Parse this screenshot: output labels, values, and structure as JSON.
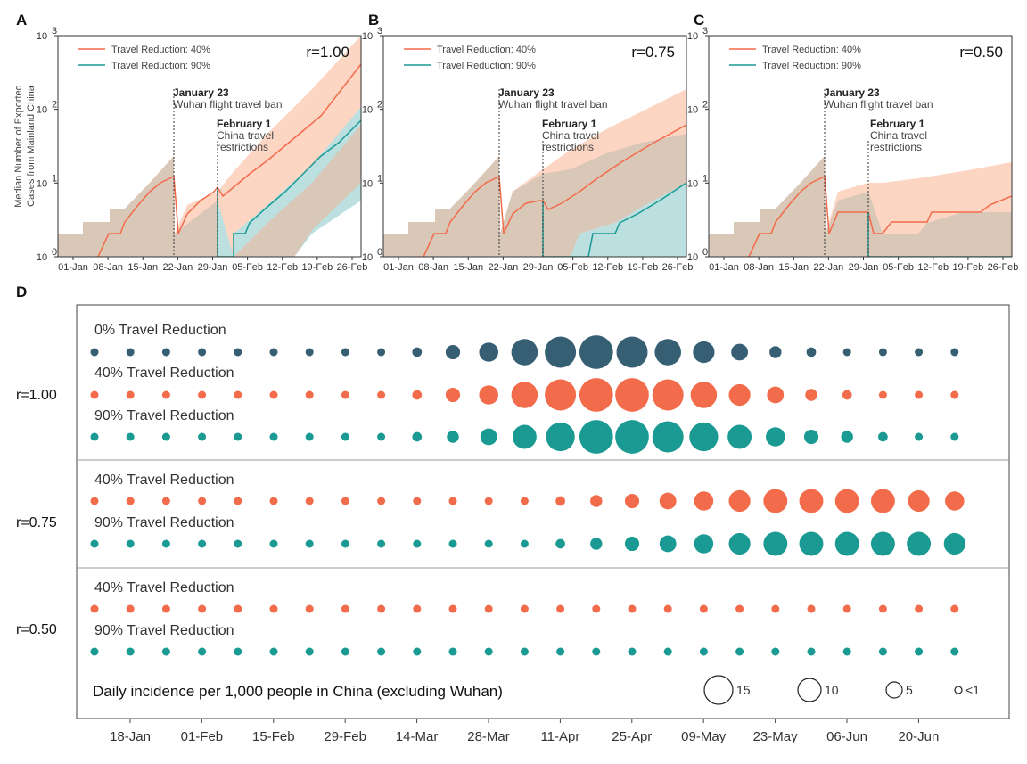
{
  "colors": {
    "travel_40": "#f26b4a",
    "travel_90": "#1a9a93",
    "travel_0": "#365f73",
    "band_40": "#fcd5c3",
    "band_90": "#bcdfe0",
    "band_overlap": "#d9c7b8"
  },
  "panels": [
    {
      "letter": "A",
      "r_label": "r=1.00"
    },
    {
      "letter": "B",
      "r_label": "r=0.75"
    },
    {
      "letter": "C",
      "r_label": "r=0.50"
    }
  ],
  "panel_d_letter": "D",
  "y_axis_label_line1": "Median Number of Exported",
  "y_axis_label_line2": "Cases from Mainland China",
  "y_ticks": [
    "10",
    "10",
    "10",
    "10"
  ],
  "y_tick_exponents": [
    "0",
    "1",
    "2",
    "3"
  ],
  "x_ticks_abc": [
    "01-Jan",
    "08-Jan",
    "15-Jan",
    "22-Jan",
    "29-Jan",
    "05-Feb",
    "12-Feb",
    "19-Feb",
    "26-Feb"
  ],
  "legend": {
    "s40": "Travel Reduction: 40%",
    "s90": "Travel Reduction: 90%"
  },
  "annotations": {
    "jan23_title": "January 23",
    "jan23_sub": "Wuhan flight travel ban",
    "feb1_title": "February 1",
    "feb1_sub1": "China travel",
    "feb1_sub2": "restrictions"
  },
  "panel_d": {
    "groups": [
      {
        "label": "r=1.00",
        "rows": [
          {
            "label": "0% Travel Reduction",
            "series": "travel_0",
            "sizes": [
              1,
              1,
              1,
              1,
              1,
              1,
              1,
              1,
              1,
              2,
              4,
              6,
              9,
              11,
              12,
              11,
              9,
              7,
              5,
              3,
              2,
              1,
              1,
              1,
              1
            ]
          },
          {
            "label": "40% Travel Reduction",
            "series": "travel_40",
            "sizes": [
              1,
              1,
              1,
              1,
              1,
              1,
              1,
              1,
              1,
              2,
              4,
              6,
              9,
              11,
              12,
              12,
              11,
              9,
              7,
              5,
              3,
              2,
              1,
              1,
              1
            ]
          },
          {
            "label": "90% Travel Reduction",
            "series": "travel_90",
            "sizes": [
              1,
              1,
              1,
              1,
              1,
              1,
              1,
              1,
              1,
              2,
              3,
              5,
              8,
              10,
              12,
              12,
              11,
              10,
              8,
              6,
              4,
              3,
              2,
              1,
              1
            ]
          }
        ]
      },
      {
        "label": "r=0.75",
        "rows": [
          {
            "label": "40% Travel Reduction",
            "series": "travel_40",
            "sizes": [
              1,
              1,
              1,
              1,
              1,
              1,
              1,
              1,
              1,
              1,
              1,
              1,
              1,
              2,
              3,
              4,
              5,
              6,
              7,
              8,
              8,
              8,
              8,
              7,
              6
            ]
          },
          {
            "label": "90% Travel Reduction",
            "series": "travel_90",
            "sizes": [
              1,
              1,
              1,
              1,
              1,
              1,
              1,
              1,
              1,
              1,
              1,
              1,
              1,
              2,
              3,
              4,
              5,
              6,
              7,
              8,
              8,
              8,
              8,
              8,
              7
            ]
          }
        ]
      },
      {
        "label": "r=0.50",
        "rows": [
          {
            "label": "40% Travel Reduction",
            "series": "travel_40",
            "sizes": [
              1,
              1,
              1,
              1,
              1,
              1,
              1,
              1,
              1,
              1,
              1,
              1,
              1,
              1,
              1,
              1,
              1,
              1,
              1,
              1,
              1,
              1,
              1,
              1,
              1
            ]
          },
          {
            "label": "90% Travel Reduction",
            "series": "travel_90",
            "sizes": [
              1,
              1,
              1,
              1,
              1,
              1,
              1,
              1,
              1,
              1,
              1,
              1,
              1,
              1,
              1,
              1,
              1,
              1,
              1,
              1,
              1,
              1,
              1,
              1,
              1
            ]
          }
        ]
      }
    ],
    "x_ticks": [
      "18-Jan",
      "01-Feb",
      "15-Feb",
      "29-Feb",
      "14-Mar",
      "28-Mar",
      "11-Apr",
      "25-Apr",
      "09-May",
      "23-May",
      "06-Jun",
      "20-Jun"
    ],
    "note": "Daily incidence per 1,000 people in China (excluding Wuhan)",
    "size_legend": [
      {
        "label": "15",
        "value": 15
      },
      {
        "label": "10",
        "value": 10
      },
      {
        "label": "5",
        "value": 5
      },
      {
        "label": "<1",
        "value": 1
      }
    ]
  },
  "chart_data": [
    {
      "type": "line",
      "panel": "A",
      "title": "r=1.00",
      "ylabel": "Median Number of Exported Cases from Mainland China",
      "yscale": "log",
      "ylim": [
        1,
        1000
      ],
      "x": [
        "01-Jan",
        "08-Jan",
        "15-Jan",
        "22-Jan",
        "29-Jan",
        "05-Feb",
        "12-Feb",
        "19-Feb",
        "26-Feb"
      ],
      "series": [
        {
          "name": "Travel Reduction: 40%",
          "values": [
            1,
            1,
            3,
            10,
            6,
            10,
            30,
            100,
            300
          ]
        },
        {
          "name": "Travel Reduction: 90%",
          "values": [
            1,
            1,
            3,
            10,
            6,
            1,
            3,
            15,
            60
          ]
        }
      ]
    },
    {
      "type": "line",
      "panel": "B",
      "title": "r=0.75",
      "yscale": "log",
      "ylim": [
        1,
        1000
      ],
      "x": [
        "01-Jan",
        "08-Jan",
        "15-Jan",
        "22-Jan",
        "29-Jan",
        "05-Feb",
        "12-Feb",
        "19-Feb",
        "26-Feb"
      ],
      "series": [
        {
          "name": "Travel Reduction: 40%",
          "values": [
            1,
            1,
            3,
            10,
            5,
            8,
            15,
            30,
            55
          ]
        },
        {
          "name": "Travel Reduction: 90%",
          "values": [
            1,
            1,
            3,
            10,
            5,
            1,
            2,
            4,
            10
          ]
        }
      ]
    },
    {
      "type": "line",
      "panel": "C",
      "title": "r=0.50",
      "yscale": "log",
      "ylim": [
        1,
        1000
      ],
      "x": [
        "01-Jan",
        "08-Jan",
        "15-Jan",
        "22-Jan",
        "29-Jan",
        "05-Feb",
        "12-Feb",
        "19-Feb",
        "26-Feb"
      ],
      "series": [
        {
          "name": "Travel Reduction: 40%",
          "values": [
            1,
            1,
            3,
            10,
            4,
            3,
            3,
            4,
            5
          ]
        },
        {
          "name": "Travel Reduction: 90%",
          "values": [
            1,
            1,
            3,
            10,
            4,
            1,
            1,
            1,
            1
          ]
        }
      ]
    },
    {
      "type": "scatter",
      "panel": "D",
      "title": "Daily incidence per 1,000 people in China (excluding Wuhan)",
      "x": [
        "18-Jan",
        "01-Feb",
        "15-Feb",
        "29-Feb",
        "14-Mar",
        "28-Mar",
        "11-Apr",
        "25-Apr",
        "09-May",
        "23-May",
        "06-Jun",
        "20-Jun"
      ]
    }
  ]
}
